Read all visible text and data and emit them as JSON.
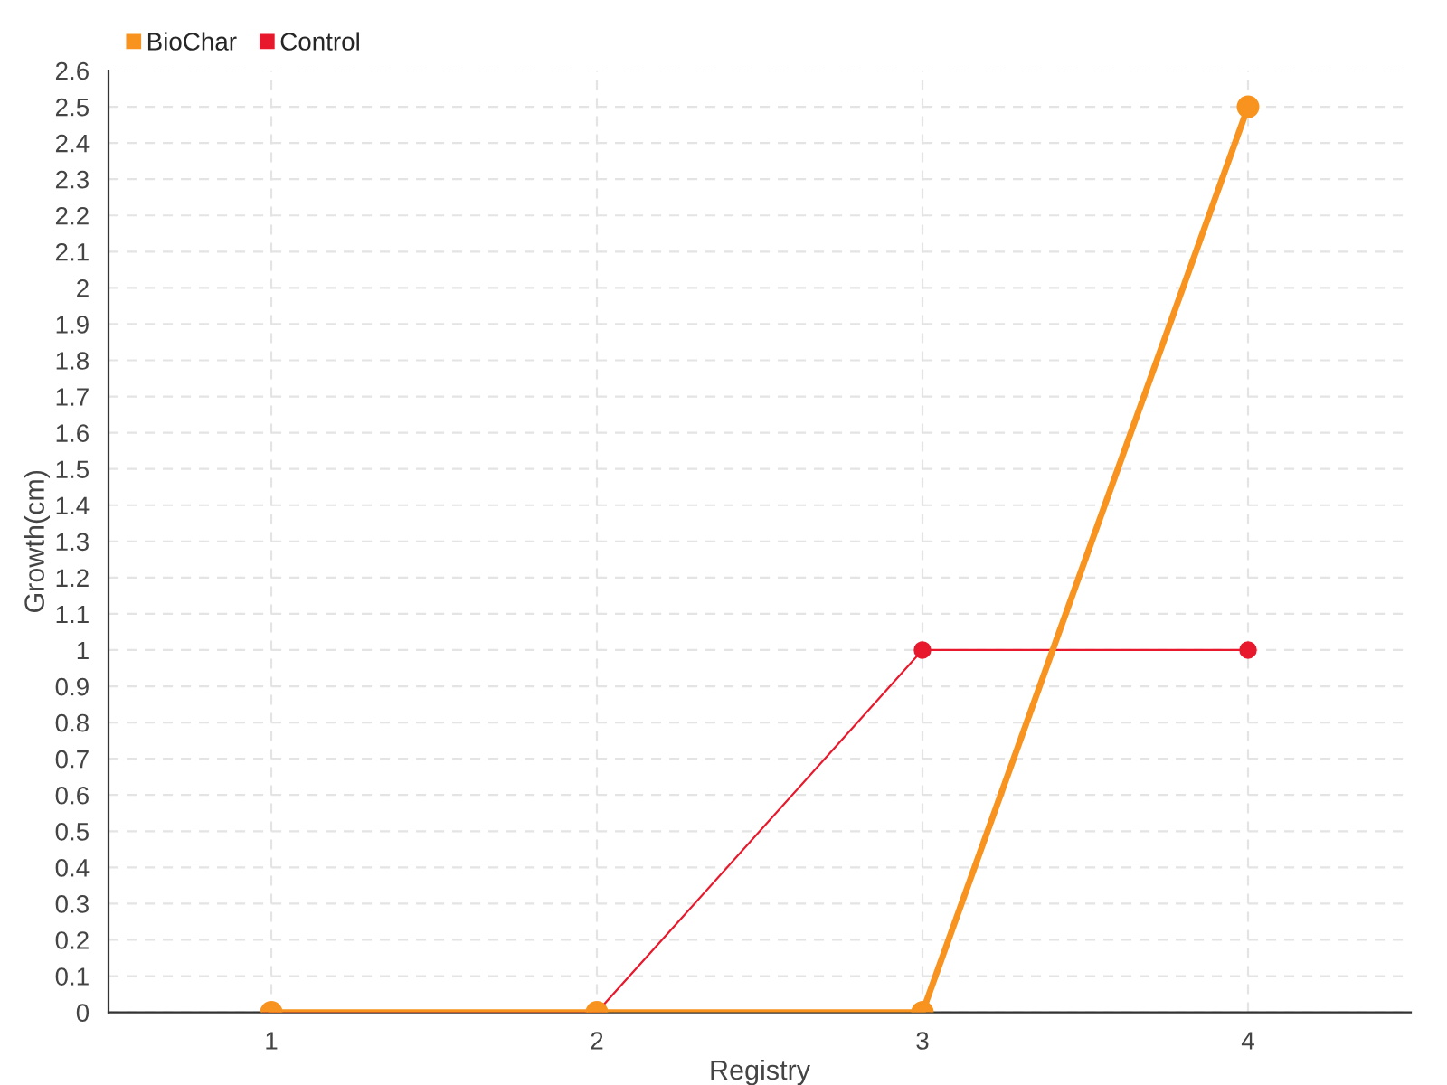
{
  "chart_data": {
    "type": "line",
    "xlabel": "Registry",
    "ylabel": "Growth(cm)",
    "x": [
      1,
      2,
      3,
      4
    ],
    "series": [
      {
        "name": "BioChar",
        "color": "#f7931e",
        "values": [
          0,
          0,
          0,
          2.5
        ]
      },
      {
        "name": "Control",
        "color": "#e8192c",
        "values": [
          0,
          0,
          1,
          1
        ]
      }
    ],
    "xlim": [
      0.5,
      4.5
    ],
    "xticks": [
      1,
      2,
      3,
      4
    ],
    "ylim": [
      0,
      2.6
    ],
    "yticks": [
      0,
      0.1,
      0.2,
      0.3,
      0.4,
      0.5,
      0.6,
      0.7,
      0.8,
      0.9,
      1,
      1.1,
      1.2,
      1.3,
      1.4,
      1.5,
      1.6,
      1.7,
      1.8,
      1.9,
      2,
      2.1,
      2.2,
      2.3,
      2.4,
      2.5,
      2.6
    ],
    "grid": true,
    "legend": "top left",
    "marker": "circle",
    "line_style": "solid"
  }
}
